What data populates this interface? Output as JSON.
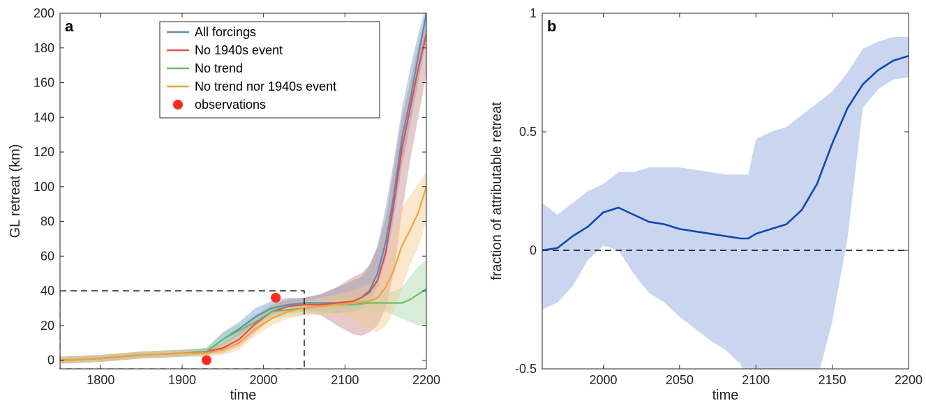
{
  "chart_data": [
    {
      "panel": "a",
      "type": "line",
      "xlabel": "time",
      "ylabel": "GL retreat (km)",
      "xlim": [
        1750,
        2200
      ],
      "ylim": [
        -5,
        200
      ],
      "xticks": [
        1800,
        1900,
        2000,
        2100,
        2200
      ],
      "yticks": [
        0,
        20,
        40,
        60,
        80,
        100,
        120,
        140,
        160,
        180,
        200
      ],
      "legend": {
        "placement": "top-center"
      },
      "box": {
        "x": [
          1750,
          2050
        ],
        "y": [
          -5,
          40
        ]
      },
      "series": [
        {
          "name": "All forcings",
          "color": "#5b8db8",
          "band_color": "#6f9fd1",
          "x": [
            1750,
            1800,
            1850,
            1900,
            1930,
            1950,
            1970,
            1990,
            2010,
            2030,
            2050,
            2070,
            2090,
            2110,
            2120,
            2130,
            2140,
            2150,
            2160,
            2170,
            2180,
            2190,
            2200
          ],
          "y": [
            0,
            1,
            3,
            4,
            5,
            12,
            18,
            25,
            30,
            32,
            33,
            33,
            33,
            34,
            36,
            40,
            50,
            68,
            95,
            128,
            150,
            175,
            200
          ],
          "lo": [
            -2,
            -1,
            1,
            2,
            3,
            8,
            14,
            20,
            26,
            28,
            29,
            28,
            27,
            28,
            30,
            34,
            42,
            58,
            82,
            112,
            135,
            160,
            185
          ],
          "hi": [
            2,
            3,
            5,
            6,
            7,
            16,
            22,
            30,
            34,
            36,
            36,
            38,
            42,
            46,
            48,
            54,
            66,
            88,
            115,
            145,
            168,
            188,
            205
          ]
        },
        {
          "name": "No 1940s event",
          "color": "#e05050",
          "band_color": "#c88a8a",
          "x": [
            1750,
            1800,
            1850,
            1900,
            1930,
            1950,
            1970,
            1990,
            2010,
            2030,
            2050,
            2070,
            2090,
            2110,
            2120,
            2130,
            2140,
            2150,
            2160,
            2170,
            2180,
            2190,
            2200
          ],
          "y": [
            0,
            1,
            3,
            4,
            5,
            7,
            12,
            21,
            28,
            31,
            32,
            32,
            33,
            34,
            36,
            39,
            46,
            62,
            90,
            122,
            145,
            168,
            188
          ],
          "lo": [
            -2,
            -1,
            1,
            2,
            3,
            4,
            8,
            16,
            24,
            27,
            28,
            26,
            20,
            15,
            14,
            16,
            20,
            30,
            50,
            85,
            115,
            140,
            165
          ],
          "hi": [
            2,
            3,
            5,
            6,
            7,
            10,
            16,
            26,
            32,
            35,
            36,
            38,
            42,
            48,
            50,
            55,
            65,
            82,
            110,
            140,
            160,
            182,
            198
          ]
        },
        {
          "name": "No trend",
          "color": "#6dbb6d",
          "band_color": "#a8d8a8",
          "x": [
            1750,
            1800,
            1850,
            1900,
            1930,
            1950,
            1970,
            1990,
            2010,
            2030,
            2050,
            2070,
            2090,
            2110,
            2130,
            2150,
            2170,
            2180,
            2190,
            2200
          ],
          "y": [
            0,
            1,
            3,
            4,
            5,
            12,
            17,
            22,
            28,
            29,
            30,
            31,
            32,
            32,
            33,
            33,
            33,
            35,
            38,
            41
          ],
          "lo": [
            -2,
            -1,
            1,
            2,
            3,
            8,
            13,
            18,
            24,
            25,
            26,
            27,
            28,
            28,
            28,
            28,
            24,
            22,
            20,
            20
          ],
          "hi": [
            2,
            3,
            5,
            6,
            7,
            16,
            21,
            26,
            32,
            33,
            34,
            35,
            36,
            36,
            37,
            38,
            42,
            48,
            54,
            58
          ]
        },
        {
          "name": "No trend nor 1940s event",
          "color": "#f5a23a",
          "band_color": "#f7c98f",
          "x": [
            1750,
            1800,
            1850,
            1900,
            1930,
            1950,
            1970,
            1990,
            2010,
            2030,
            2050,
            2070,
            2090,
            2110,
            2130,
            2140,
            2150,
            2160,
            2170,
            2180,
            2190,
            2200
          ],
          "y": [
            0,
            1,
            3,
            4,
            4,
            6,
            10,
            18,
            24,
            28,
            30,
            31,
            32,
            33,
            34,
            36,
            42,
            52,
            66,
            75,
            85,
            100
          ],
          "lo": [
            -2,
            -1,
            1,
            2,
            2,
            3,
            6,
            14,
            20,
            24,
            26,
            26,
            26,
            24,
            18,
            16,
            20,
            28,
            42,
            55,
            65,
            80
          ],
          "hi": [
            2,
            3,
            5,
            6,
            6,
            9,
            14,
            22,
            28,
            32,
            34,
            36,
            38,
            40,
            44,
            48,
            58,
            72,
            88,
            95,
            102,
            108
          ]
        }
      ],
      "observations": {
        "name": "observations",
        "color": "#ff2a1a",
        "x": [
          1930,
          2015
        ],
        "y": [
          0,
          36
        ]
      }
    },
    {
      "panel": "b",
      "type": "line",
      "xlabel": "time",
      "ylabel": "fraction of attributable retreat",
      "xlim": [
        1960,
        2200
      ],
      "ylim": [
        -0.5,
        1
      ],
      "xticks": [
        2000,
        2050,
        2100,
        2150,
        2200
      ],
      "yticks": [
        -0.5,
        0,
        0.5,
        1
      ],
      "ytick_labels": [
        "-0.5",
        "0",
        "0.5",
        "1"
      ],
      "zero_line": 0,
      "series": [
        {
          "color": "#0d47b5",
          "band_color": "#c7d4ee",
          "x": [
            1960,
            1970,
            1980,
            1990,
            2000,
            2010,
            2020,
            2030,
            2040,
            2050,
            2060,
            2070,
            2080,
            2090,
            2095,
            2100,
            2110,
            2120,
            2130,
            2140,
            2150,
            2160,
            2170,
            2180,
            2190,
            2200
          ],
          "y": [
            0,
            0.01,
            0.06,
            0.1,
            0.16,
            0.18,
            0.15,
            0.12,
            0.11,
            0.09,
            0.08,
            0.07,
            0.06,
            0.05,
            0.05,
            0.07,
            0.09,
            0.11,
            0.17,
            0.28,
            0.45,
            0.6,
            0.7,
            0.76,
            0.8,
            0.82
          ],
          "lo": [
            -0.25,
            -0.22,
            -0.15,
            -0.04,
            0.02,
            0.0,
            -0.1,
            -0.18,
            -0.22,
            -0.28,
            -0.33,
            -0.38,
            -0.42,
            -0.48,
            -0.6,
            -0.6,
            -0.6,
            -0.6,
            -0.6,
            -0.55,
            -0.3,
            0.05,
            0.6,
            0.68,
            0.72,
            0.73
          ],
          "hi": [
            0.2,
            0.15,
            0.2,
            0.25,
            0.28,
            0.33,
            0.33,
            0.35,
            0.35,
            0.35,
            0.34,
            0.33,
            0.32,
            0.32,
            0.32,
            0.47,
            0.5,
            0.52,
            0.57,
            0.62,
            0.67,
            0.75,
            0.85,
            0.88,
            0.9,
            0.9
          ]
        }
      ]
    }
  ]
}
